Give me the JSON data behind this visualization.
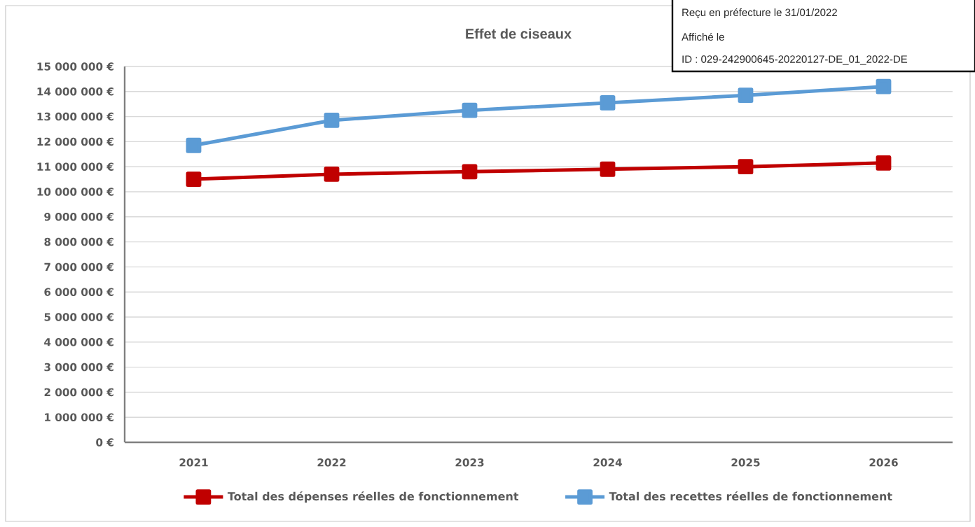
{
  "chart_data": {
    "type": "line",
    "title": "Effet de ciseaux",
    "categories": [
      "2021",
      "2022",
      "2023",
      "2024",
      "2025",
      "2026"
    ],
    "series": [
      {
        "name": "Total des dépenses réelles de fonctionnement",
        "color": "#c00000",
        "values": [
          10500000,
          10700000,
          10800000,
          10900000,
          11000000,
          11150000
        ]
      },
      {
        "name": "Total des recettes réelles de fonctionnement",
        "color": "#5b9bd5",
        "values": [
          11850000,
          12850000,
          13250000,
          13550000,
          13850000,
          14200000
        ]
      }
    ],
    "ylim": [
      0,
      15000000
    ],
    "yticks": [
      {
        "value": 0,
        "label": "0 €"
      },
      {
        "value": 1000000,
        "label": "1 000 000 €"
      },
      {
        "value": 2000000,
        "label": "2 000 000 €"
      },
      {
        "value": 3000000,
        "label": "3 000 000 €"
      },
      {
        "value": 4000000,
        "label": "4 000 000 €"
      },
      {
        "value": 5000000,
        "label": "5 000 000 €"
      },
      {
        "value": 6000000,
        "label": "6 000 000 €"
      },
      {
        "value": 7000000,
        "label": "7 000 000 €"
      },
      {
        "value": 8000000,
        "label": "8 000 000 €"
      },
      {
        "value": 9000000,
        "label": "9 000 000 €"
      },
      {
        "value": 10000000,
        "label": "10 000 000 €"
      },
      {
        "value": 11000000,
        "label": "11 000 000 €"
      },
      {
        "value": 12000000,
        "label": "12 000 000 €"
      },
      {
        "value": 13000000,
        "label": "13 000 000 €"
      },
      {
        "value": 14000000,
        "label": "14 000 000 €"
      },
      {
        "value": 15000000,
        "label": "15 000 000 €"
      }
    ],
    "grid": "y",
    "legend": "bottom",
    "marker": "square",
    "line_style": "solid",
    "annotations": [
      "Reçu en préfecture le 31/01/2022",
      "Affiché le",
      "ID : 029-242900645-20220127-DE_01_2022-DE"
    ]
  }
}
